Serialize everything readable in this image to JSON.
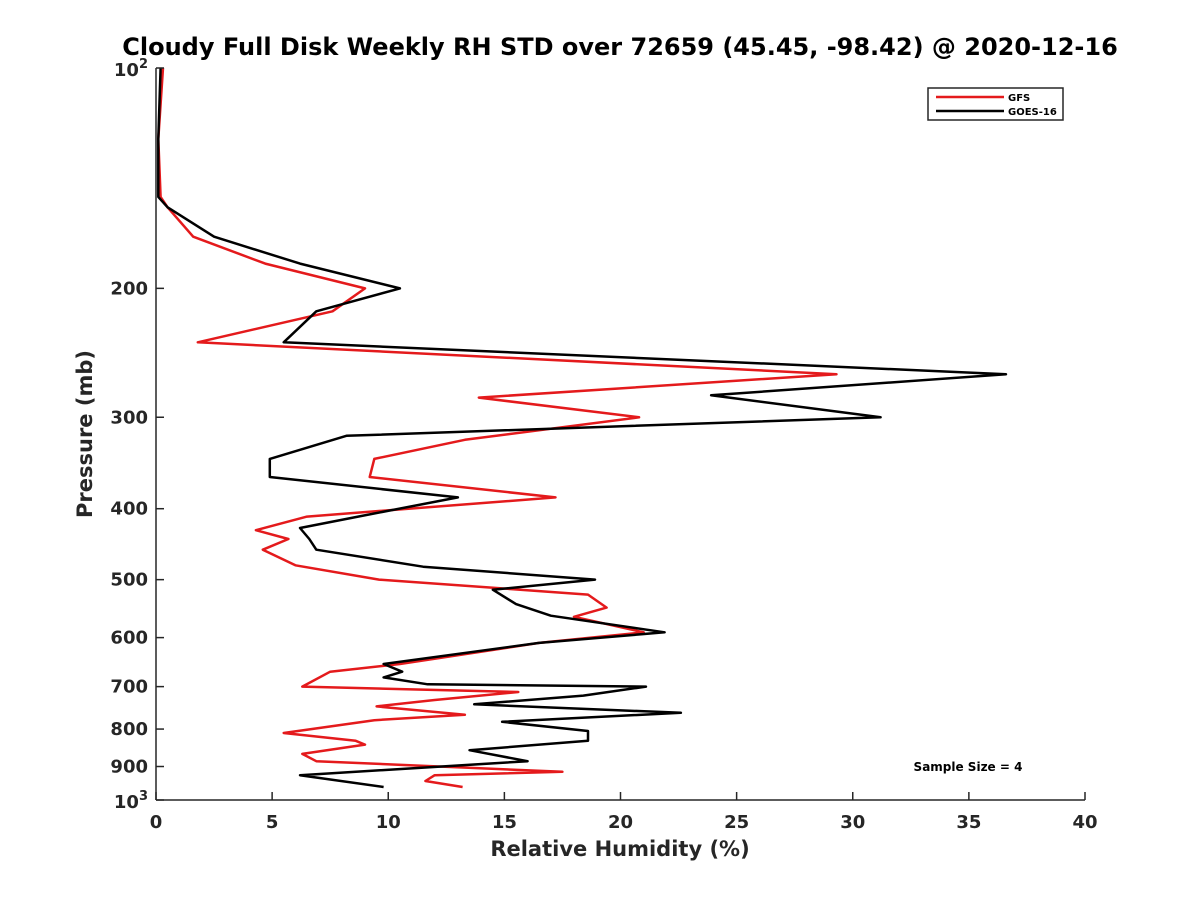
{
  "chart_data": {
    "type": "line",
    "title": "Cloudy Full Disk Weekly RH STD over 72659 (45.45, -98.42) @ 2020-12-16",
    "xlabel": "Relative Humidity (%)",
    "ylabel": "Pressure (mb)",
    "xlim": [
      0,
      40
    ],
    "ylim": [
      100,
      1000
    ],
    "y_scale": "log",
    "y_reversed": true,
    "x_ticks": [
      "0",
      "5",
      "10",
      "15",
      "20",
      "25",
      "30",
      "35",
      "40"
    ],
    "y_tick_values": [
      200,
      300,
      400,
      500,
      600,
      700,
      800,
      900
    ],
    "y_tick_labels": [
      "200",
      "300",
      "400",
      "500",
      "600",
      "700",
      "800",
      "900"
    ],
    "y_limit_labels": {
      "top_base": "10",
      "top_exp": "2",
      "bottom_base": "10",
      "bottom_exp": "3"
    },
    "grid": false,
    "legend_position": "top-right",
    "annotation": "Sample Size = 4",
    "series": [
      {
        "name": "GFS",
        "color": "#e41a1c",
        "points": [
          [
            0.3,
            100
          ],
          [
            0.1,
            125
          ],
          [
            0.2,
            150
          ],
          [
            0.5,
            155
          ],
          [
            1.6,
            170
          ],
          [
            4.7,
            185
          ],
          [
            9.0,
            200
          ],
          [
            7.6,
            215
          ],
          [
            1.8,
            237
          ],
          [
            29.3,
            262
          ],
          [
            13.9,
            282
          ],
          [
            20.8,
            300
          ],
          [
            13.3,
            322
          ],
          [
            9.4,
            342
          ],
          [
            9.2,
            362
          ],
          [
            17.2,
            386
          ],
          [
            6.5,
            410
          ],
          [
            4.3,
            428
          ],
          [
            5.7,
            440
          ],
          [
            4.6,
            455
          ],
          [
            6.0,
            478
          ],
          [
            9.6,
            500
          ],
          [
            18.6,
            524
          ],
          [
            19.4,
            546
          ],
          [
            18.0,
            562
          ],
          [
            21.0,
            590
          ],
          [
            16.5,
            610
          ],
          [
            10.5,
            652
          ],
          [
            7.5,
            668
          ],
          [
            6.3,
            700
          ],
          [
            15.6,
            712
          ],
          [
            12.0,
            730
          ],
          [
            9.5,
            745
          ],
          [
            13.3,
            765
          ],
          [
            9.4,
            778
          ],
          [
            5.5,
            810
          ],
          [
            8.6,
            830
          ],
          [
            9.0,
            840
          ],
          [
            6.3,
            865
          ],
          [
            6.9,
            885
          ],
          [
            17.5,
            915
          ],
          [
            12.0,
            925
          ],
          [
            11.6,
            942
          ],
          [
            13.2,
            960
          ]
        ]
      },
      {
        "name": "GOES-16",
        "color": "#000000",
        "points": [
          [
            0.2,
            100
          ],
          [
            0.1,
            125
          ],
          [
            0.1,
            150
          ],
          [
            0.5,
            155
          ],
          [
            2.5,
            170
          ],
          [
            6.2,
            185
          ],
          [
            10.5,
            200
          ],
          [
            6.9,
            215
          ],
          [
            5.5,
            237
          ],
          [
            36.6,
            262
          ],
          [
            23.9,
            280
          ],
          [
            31.2,
            300
          ],
          [
            8.2,
            318
          ],
          [
            4.9,
            342
          ],
          [
            4.9,
            362
          ],
          [
            13.0,
            386
          ],
          [
            8.7,
            410
          ],
          [
            6.2,
            425
          ],
          [
            6.6,
            440
          ],
          [
            6.9,
            455
          ],
          [
            11.5,
            480
          ],
          [
            18.9,
            500
          ],
          [
            14.5,
            516
          ],
          [
            15.5,
            540
          ],
          [
            17.0,
            560
          ],
          [
            21.9,
            590
          ],
          [
            16.5,
            610
          ],
          [
            9.8,
            652
          ],
          [
            10.6,
            668
          ],
          [
            9.8,
            680
          ],
          [
            11.7,
            695
          ],
          [
            21.1,
            700
          ],
          [
            18.4,
            720
          ],
          [
            13.7,
            740
          ],
          [
            22.6,
            760
          ],
          [
            14.9,
            782
          ],
          [
            18.6,
            805
          ],
          [
            18.6,
            830
          ],
          [
            13.5,
            855
          ],
          [
            16.0,
            885
          ],
          [
            6.2,
            925
          ],
          [
            9.8,
            960
          ]
        ]
      }
    ]
  }
}
